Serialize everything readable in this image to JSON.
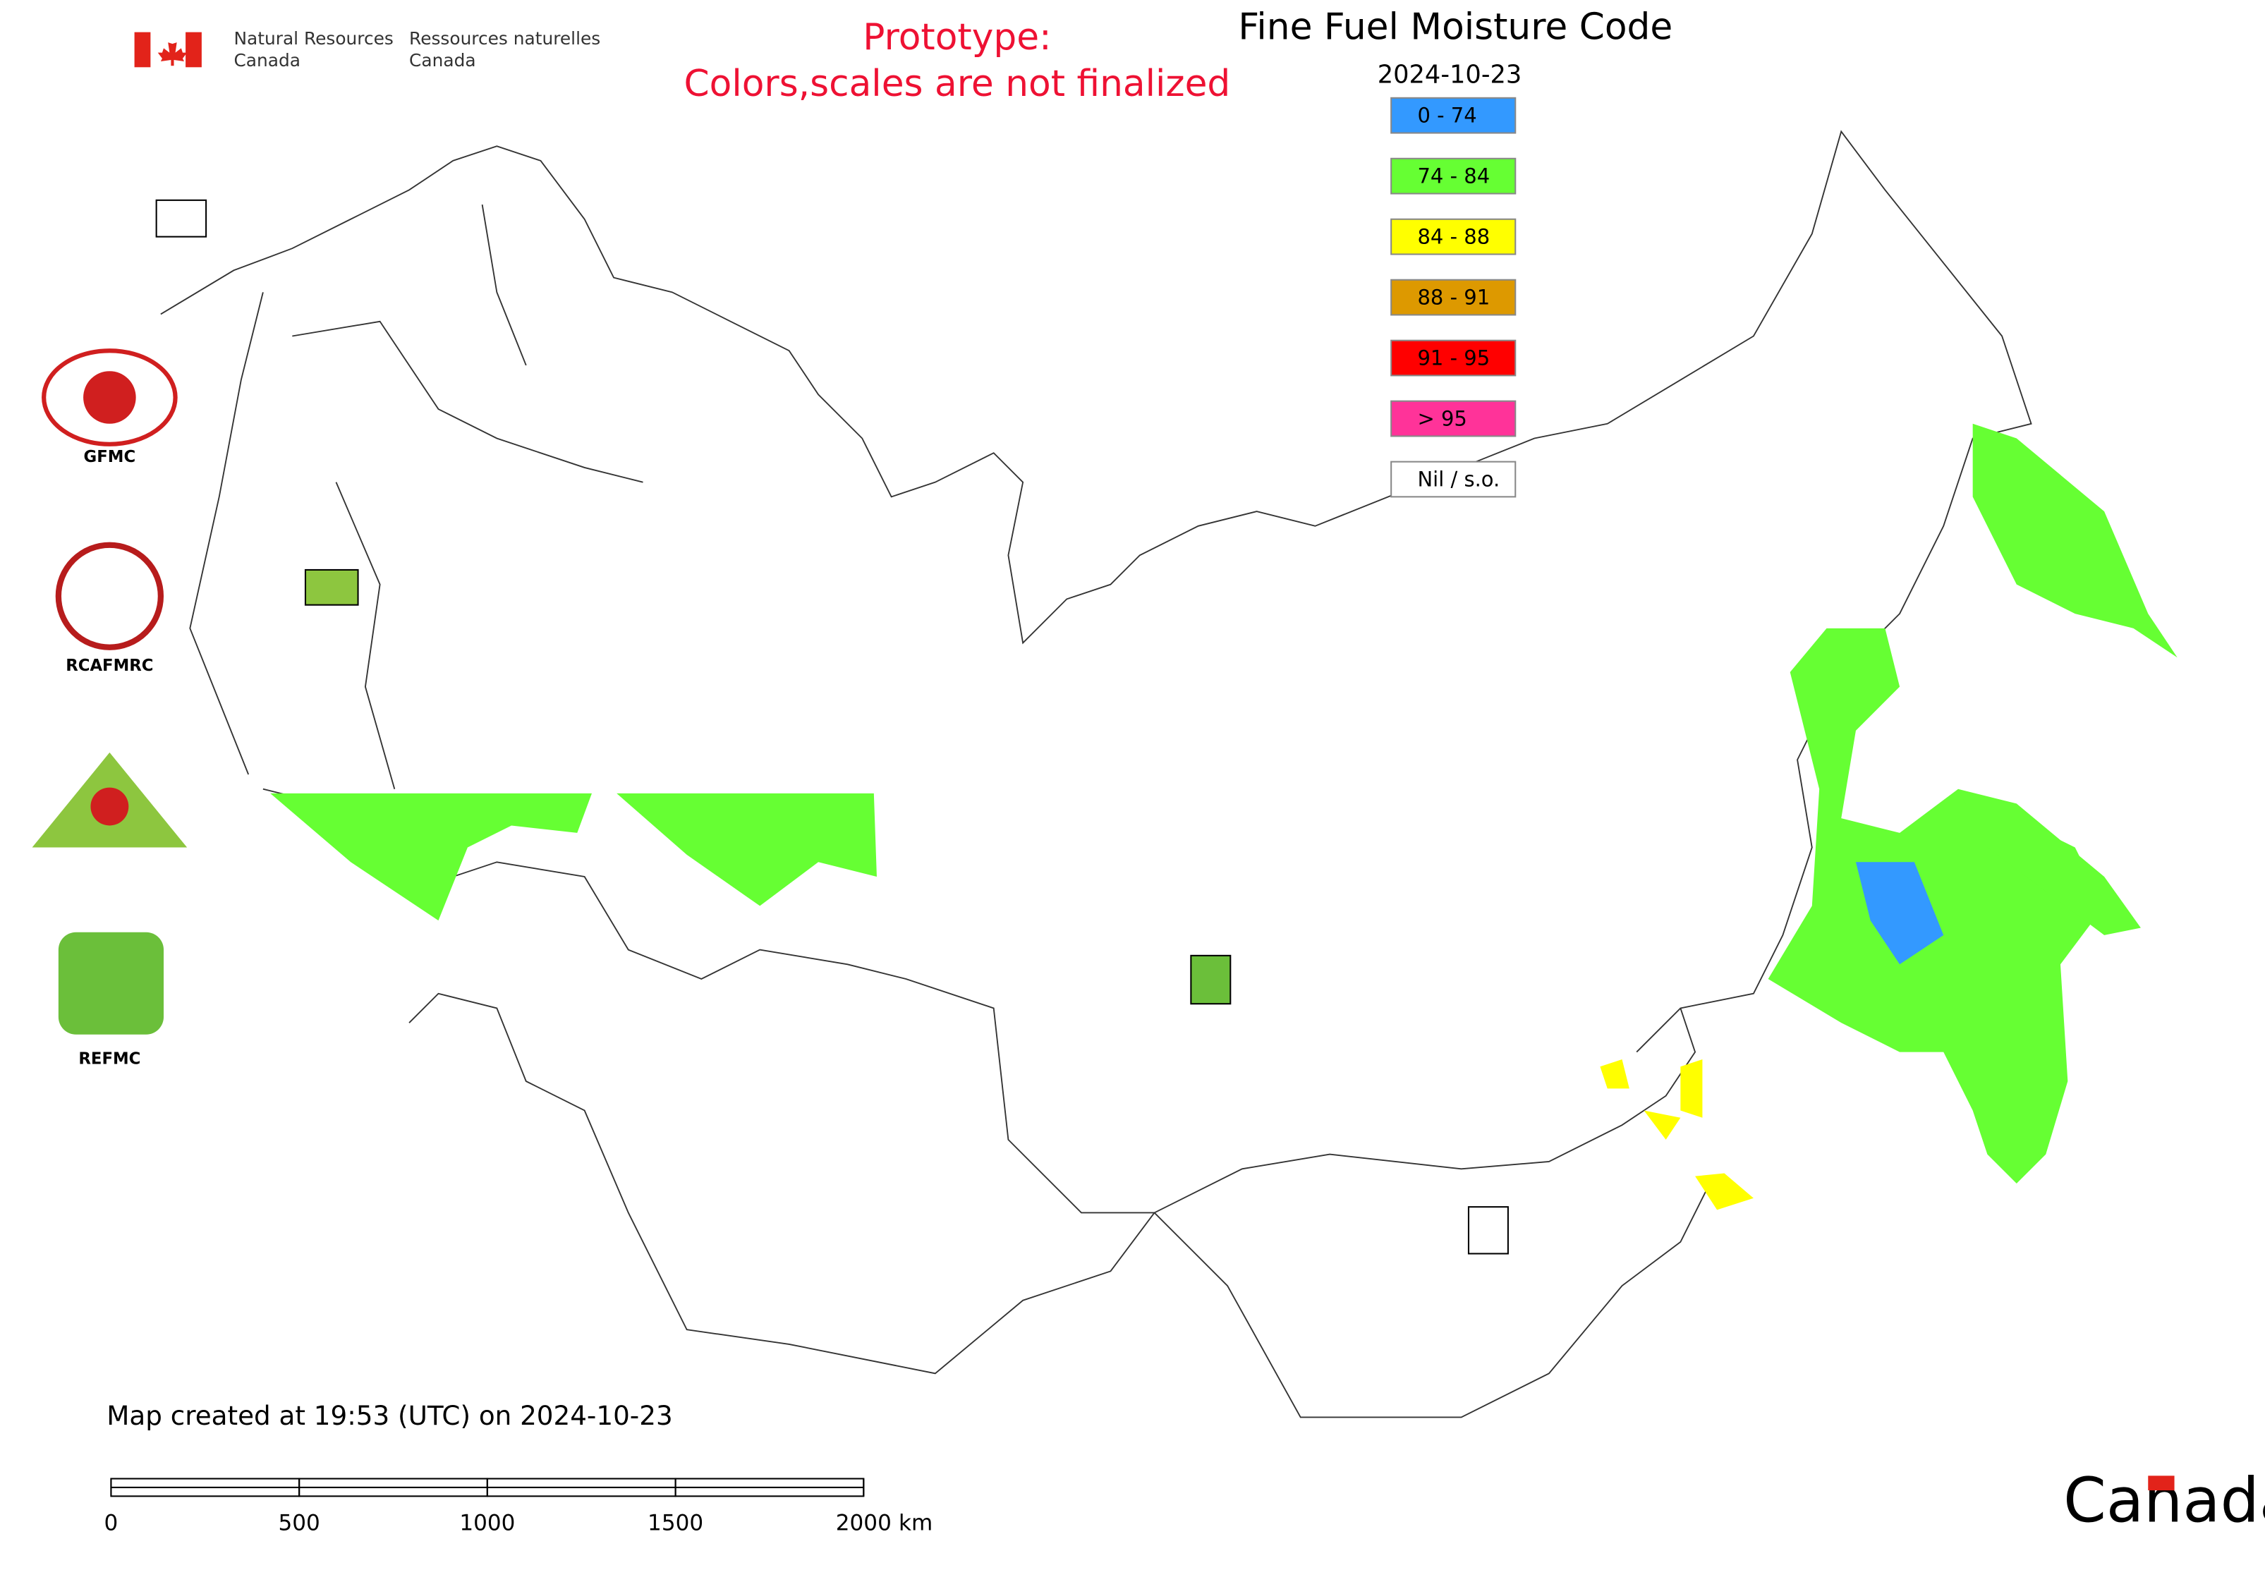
{
  "header": {
    "agency_en": [
      "Natural Resources",
      "Canada"
    ],
    "agency_fr": [
      "Ressources naturelles",
      "Canada"
    ],
    "notice": [
      "Prototype:",
      "Colors,scales are not finalized"
    ]
  },
  "map": {
    "title": "Fine Fuel Moisture Code",
    "date": "2024-10-23",
    "legend": [
      {
        "label": "0 - 74",
        "color": "#3399ff"
      },
      {
        "label": "74 - 84",
        "color": "#66ff33"
      },
      {
        "label": "84 - 88",
        "color": "#ffff00"
      },
      {
        "label": "88 - 91",
        "color": "#dd9900"
      },
      {
        "label": "91 - 95",
        "color": "#ff0000"
      },
      {
        "label": "> 95",
        "color": "#ff3399"
      },
      {
        "label": "Nil / s.o.",
        "color": "#ffffff"
      }
    ],
    "centres": [
      "GFMC",
      "RCAFMRC",
      "REFMC"
    ],
    "footer": "Map created at 19:53 (UTC) on 2024-10-23",
    "scale_bar": {
      "ticks": [
        0,
        500,
        1000,
        1500,
        2000
      ],
      "unit": "km"
    },
    "wordmark": "Canada"
  }
}
